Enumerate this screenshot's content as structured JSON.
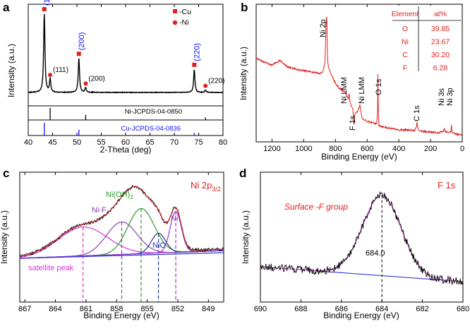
{
  "colors": {
    "axis": "#000000",
    "cu": "#e02020",
    "ref_cu": "#1010ff",
    "survey": "#e02020",
    "fit_env": "#c03030",
    "satellite": "#dd33dd",
    "nif": "#8844aa",
    "nioh2": "#2a9a2a",
    "nio": "#2233aa",
    "ni": "#9933cc",
    "baseline": "#3333dd",
    "f_fit": "#e060e0",
    "raw": "#000000"
  },
  "chart_data": [
    {
      "panel_label": "a",
      "type": "line",
      "xlabel": "2-Theta (deg)",
      "ylabel": "Intensity (a.u.)",
      "xlim": [
        40,
        80
      ],
      "xticks": [
        "40",
        "45",
        "50",
        "55",
        "60",
        "65",
        "70",
        "75",
        "80"
      ],
      "legend": [
        {
          "symbol": "square",
          "label": "-Cu"
        },
        {
          "symbol": "circle",
          "label": "-Ni"
        }
      ],
      "peaks": [
        {
          "x": 43.3,
          "height": 1.0,
          "phase": "Cu",
          "label": "(111)"
        },
        {
          "x": 44.5,
          "height": 0.17,
          "phase": "Ni",
          "label": "(111)"
        },
        {
          "x": 50.4,
          "height": 0.43,
          "phase": "Cu",
          "label": "(200)"
        },
        {
          "x": 51.8,
          "height": 0.06,
          "phase": "Ni",
          "label": "(200)"
        },
        {
          "x": 74.1,
          "height": 0.29,
          "phase": "Cu",
          "label": "(220)"
        },
        {
          "x": 76.4,
          "height": 0.03,
          "phase": "Ni",
          "label": "(220)"
        }
      ],
      "references": [
        {
          "name": "Ni-JCPDS-04-0850",
          "lines": [
            {
              "x": 44.5,
              "h": 1.0
            },
            {
              "x": 51.8,
              "h": 0.42
            },
            {
              "x": 76.4,
              "h": 0.21
            }
          ]
        },
        {
          "name": "Cu-JCPDS-04-0836",
          "lines": [
            {
              "x": 43.3,
              "h": 1.0
            },
            {
              "x": 50.4,
              "h": 0.46
            },
            {
              "x": 74.1,
              "h": 0.2
            }
          ]
        }
      ]
    },
    {
      "panel_label": "b",
      "type": "line",
      "xlabel": "Binding Energy (eV)",
      "ylabel": "Intensity (a.u.)",
      "xlim": [
        1300,
        0
      ],
      "xticks": [
        "1200",
        "1000",
        "800",
        "600",
        "400",
        "200",
        "0"
      ],
      "peak_labels": [
        {
          "x": 855,
          "label": "Ni 2p"
        },
        {
          "x": 712,
          "label": "Ni LMM"
        },
        {
          "x": 645,
          "label": "Ni LMM"
        },
        {
          "x": 685,
          "label": "F 1s"
        },
        {
          "x": 532,
          "label": "O 1s"
        },
        {
          "x": 285,
          "label": "C 1s"
        },
        {
          "x": 112,
          "label": "Ni 3s"
        },
        {
          "x": 68,
          "label": "Ni 3p"
        }
      ],
      "composition_table": {
        "headers": [
          "Element",
          "at%"
        ],
        "rows": [
          [
            "O",
            "39.85"
          ],
          [
            "Ni",
            "23.67"
          ],
          [
            "C",
            "30.20"
          ],
          [
            "F",
            "6.28"
          ]
        ]
      }
    },
    {
      "panel_label": "c",
      "title": "Ni 2p3/2",
      "title_main": "Ni 2p",
      "title_sub": "3/2",
      "type": "line",
      "xlabel": "Binding Energy (eV)",
      "ylabel": "Intensity (a.u.)",
      "xlim": [
        867.5,
        847.5
      ],
      "xticks": [
        "867",
        "864",
        "861",
        "858",
        "855",
        "852",
        "849"
      ],
      "components": [
        {
          "name": "satellite peak",
          "center": 861.3
        },
        {
          "name": "Ni-F",
          "center": 857.5
        },
        {
          "name": "Ni(OH)",
          "sub": "2",
          "center": 855.6
        },
        {
          "name": "NiO",
          "center": 853.9
        },
        {
          "name": "Ni",
          "center": 852.2
        }
      ]
    },
    {
      "panel_label": "d",
      "title": "F 1s",
      "type": "line",
      "xlabel": "Binding Energy (eV)",
      "ylabel": "Intensity (a.u.)",
      "xlim": [
        690,
        680
      ],
      "xticks": [
        "690",
        "688",
        "686",
        "684",
        "682",
        "680"
      ],
      "peak_center": 684.0,
      "peak_label": "684.0",
      "annotation": "Surface -F group"
    }
  ]
}
